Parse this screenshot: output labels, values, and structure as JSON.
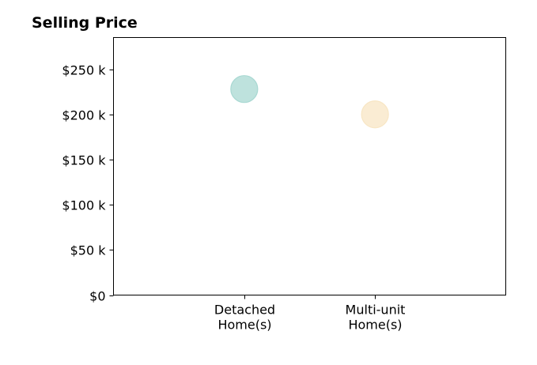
{
  "chart_data": {
    "type": "scatter",
    "title": "Selling Price",
    "xlabel": "",
    "ylabel": "",
    "categories": [
      [
        "Detached",
        "Home(s)"
      ],
      [
        "Multi-unit",
        "Home(s)"
      ]
    ],
    "x_categories_count_range": [
      -1,
      2
    ],
    "y_ticks": [
      {
        "value": 0,
        "label": "$0"
      },
      {
        "value": 50000,
        "label": "$50 k"
      },
      {
        "value": 100000,
        "label": "$100 k"
      },
      {
        "value": 150000,
        "label": "$150 k"
      },
      {
        "value": 200000,
        "label": "$200 k"
      },
      {
        "value": 250000,
        "label": "$250 k"
      }
    ],
    "ylim": [
      0,
      285000
    ],
    "grid": false,
    "legend": "none",
    "points": [
      {
        "category": "Detached Home(s)",
        "value": 228000,
        "color": "#a8d8d2"
      },
      {
        "category": "Multi-unit Home(s)",
        "value": 200000,
        "color": "#f8e6c4"
      }
    ]
  }
}
